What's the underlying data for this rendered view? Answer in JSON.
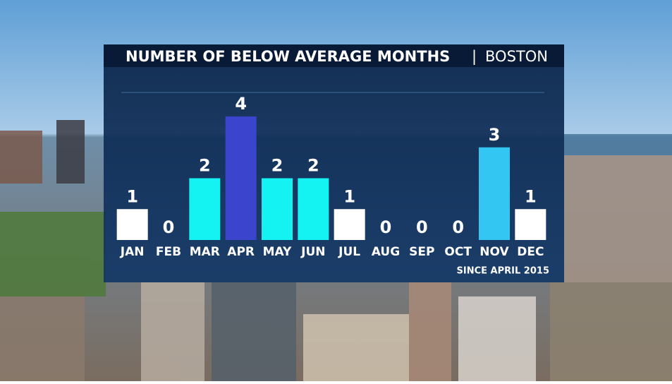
{
  "chart_data": {
    "type": "bar",
    "title": "NUMBER OF BELOW AVERAGE MONTHS",
    "subtitle": "BOSTON",
    "footnote": "SINCE APRIL 2015",
    "categories": [
      "JAN",
      "FEB",
      "MAR",
      "APR",
      "MAY",
      "JUN",
      "JUL",
      "AUG",
      "SEP",
      "OCT",
      "NOV",
      "DEC"
    ],
    "values": [
      1,
      0,
      2,
      4,
      2,
      2,
      1,
      0,
      0,
      0,
      3,
      1
    ],
    "colors": [
      "#ffffff",
      "#ffffff",
      "#14f2f2",
      "#3b44cc",
      "#14f2f2",
      "#14f2f2",
      "#ffffff",
      "#ffffff",
      "#ffffff",
      "#ffffff",
      "#34c6f2",
      "#ffffff"
    ],
    "ylim": [
      0,
      4
    ]
  }
}
